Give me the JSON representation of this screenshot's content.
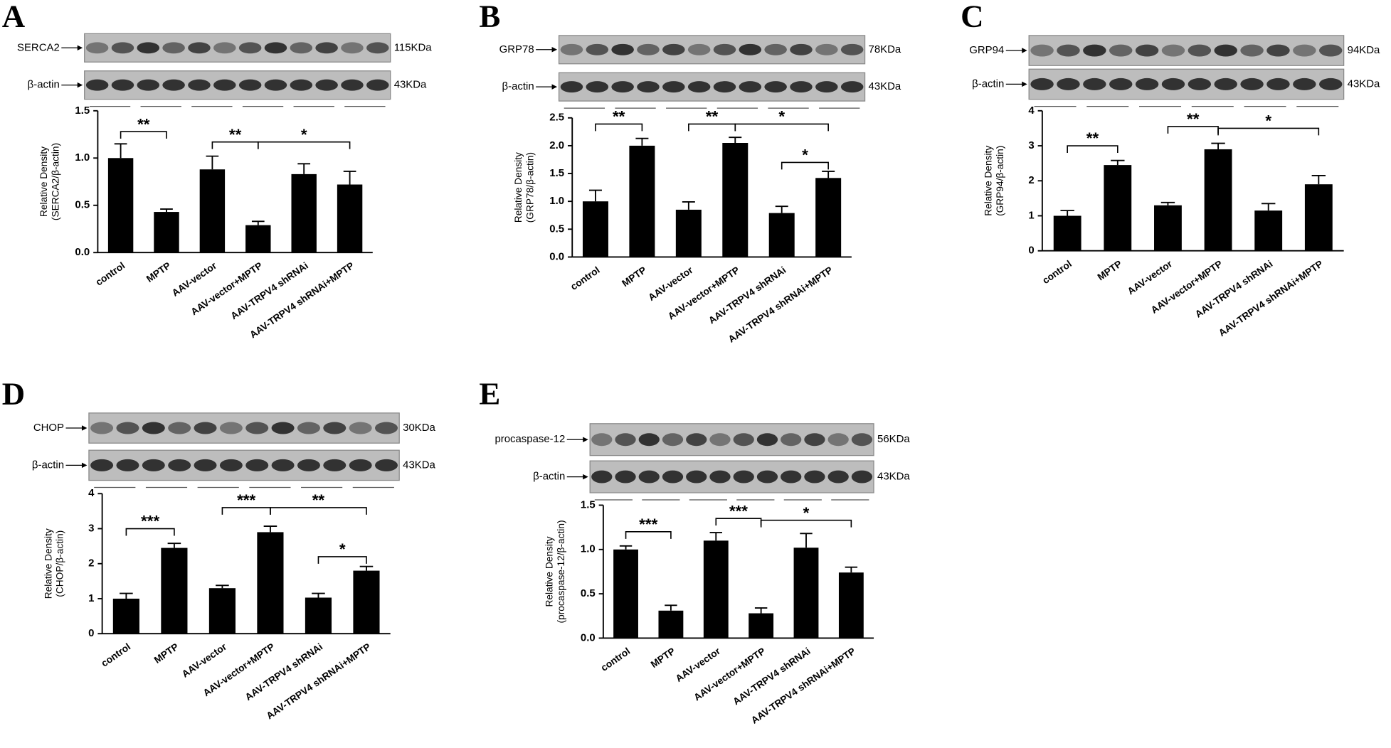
{
  "chart_data": [
    {
      "type": "bar",
      "panel": "A",
      "blots": [
        {
          "label": "SERCA2",
          "size": "115KDa"
        },
        {
          "label": "β-actin",
          "size": "43KDa"
        }
      ],
      "ylabel": [
        "Relative Density",
        "(SERCA2/β-actin)"
      ],
      "categories": [
        "control",
        "MPTP",
        "AAV-vector",
        "AAV-vector+MPTP",
        "AAV-TRPV4 shRNAi",
        "AAV-TRPV4 shRNAi+MPTP"
      ],
      "values": [
        1.0,
        0.43,
        0.88,
        0.29,
        0.83,
        0.72
      ],
      "errors": [
        0.15,
        0.03,
        0.14,
        0.04,
        0.11,
        0.14
      ],
      "color": "#000000",
      "ylim": [
        0,
        1.5
      ],
      "yticks": [
        {
          "value": 0,
          "label": "0.0"
        },
        0.5,
        {
          "value": 1,
          "label": "1.0"
        },
        1.5
      ],
      "annotations": [
        "**",
        "**",
        "*"
      ]
    },
    {
      "type": "bar",
      "panel": "B",
      "blots": [
        {
          "label": "GRP78",
          "size": "78KDa"
        },
        {
          "label": "β-actin",
          "size": "43KDa"
        }
      ],
      "ylabel": [
        "Relative Density",
        "(GRP78/β-actin)"
      ],
      "categories": [
        "control",
        "MPTP",
        "AAV-vector",
        "AAV-vector+MPTP",
        "AAV-TRPV4 shRNAi",
        "AAV-TRPV4 shRNAi+MPTP"
      ],
      "values": [
        1.0,
        2.0,
        0.85,
        2.05,
        0.79,
        1.42
      ],
      "errors": [
        0.2,
        0.13,
        0.14,
        0.1,
        0.12,
        0.12
      ],
      "color": "#000000",
      "ylim": [
        0,
        2.5
      ],
      "yticks": [
        {
          "value": 0,
          "label": "0.0"
        },
        0.5,
        {
          "value": 1,
          "label": "1.0"
        },
        1.5,
        {
          "value": 2,
          "label": "2.0"
        },
        2.5
      ],
      "annotations": [
        "**",
        "**",
        "*",
        "*"
      ]
    },
    {
      "type": "bar",
      "panel": "C",
      "blots": [
        {
          "label": "GRP94",
          "size": "94KDa"
        },
        {
          "label": "β-actin",
          "size": "43KDa"
        }
      ],
      "ylabel": [
        "Relative Density",
        "(GRP94/β-actin)"
      ],
      "categories": [
        "control",
        "MPTP",
        "AAV-vector",
        "AAV-vector+MPTP",
        "AAV-TRPV4 shRNAi",
        "AAV-TRPV4 shRNAi+MPTP"
      ],
      "values": [
        1.0,
        2.45,
        1.3,
        2.9,
        1.15,
        1.9
      ],
      "errors": [
        0.15,
        0.13,
        0.08,
        0.17,
        0.2,
        0.25
      ],
      "color": "#000000",
      "ylim": [
        0,
        4
      ],
      "yticks": [
        0,
        1,
        2,
        3,
        4
      ],
      "annotations": [
        "**",
        "**",
        "*"
      ]
    },
    {
      "type": "bar",
      "panel": "D",
      "blots": [
        {
          "label": "CHOP",
          "size": "30KDa"
        },
        {
          "label": "β-actin",
          "size": "43KDa"
        }
      ],
      "ylabel": [
        "Relative Density",
        "(CHOP/β-actin)"
      ],
      "categories": [
        "control",
        "MPTP",
        "AAV-vector",
        "AAV-vector+MPTP",
        "AAV-TRPV4 shRNAi",
        "AAV-TRPV4 shRNAi+MPTP"
      ],
      "values": [
        1.0,
        2.45,
        1.3,
        2.9,
        1.03,
        1.8
      ],
      "errors": [
        0.15,
        0.13,
        0.08,
        0.17,
        0.12,
        0.12
      ],
      "color": "#000000",
      "ylim": [
        0,
        4
      ],
      "yticks": [
        0,
        1,
        2,
        3,
        4
      ],
      "annotations": [
        "***",
        "***",
        "**",
        "*"
      ]
    },
    {
      "type": "bar",
      "panel": "E",
      "blots": [
        {
          "label": "procaspase-12",
          "size": "56KDa"
        },
        {
          "label": "β-actin",
          "size": "43KDa"
        }
      ],
      "ylabel": [
        "Relative Density",
        "(procaspase-12/β-actin)"
      ],
      "categories": [
        "control",
        "MPTP",
        "AAV-vector",
        "AAV-vector+MPTP",
        "AAV-TRPV4 shRNAi",
        "AAV-TRPV4 shRNAi+MPTP"
      ],
      "values": [
        1.0,
        0.31,
        1.1,
        0.28,
        1.02,
        0.74
      ],
      "errors": [
        0.04,
        0.06,
        0.09,
        0.06,
        0.16,
        0.06
      ],
      "color": "#000000",
      "ylim": [
        0,
        1.5
      ],
      "yticks": [
        {
          "value": 0,
          "label": "0.0"
        },
        0.5,
        {
          "value": 1,
          "label": "1.0"
        },
        1.5
      ],
      "annotations": [
        "***",
        "***",
        "*"
      ]
    }
  ]
}
